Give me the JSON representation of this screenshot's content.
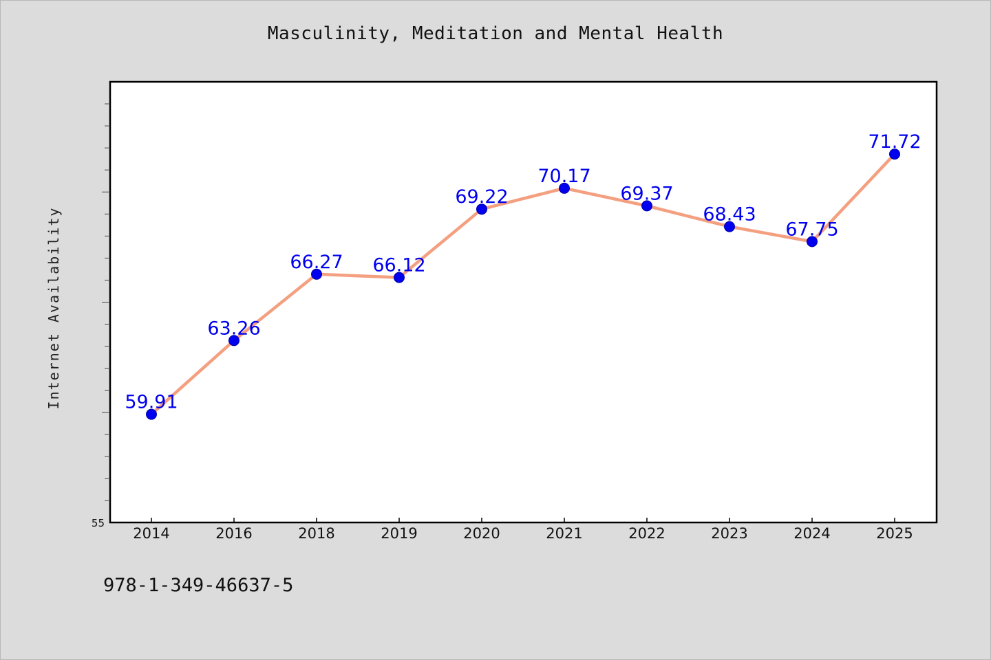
{
  "chart_data": {
    "type": "line",
    "title": "Masculinity, Meditation and Mental Health",
    "xlabel": "",
    "ylabel": "Internet Availability",
    "categories": [
      "2014",
      "2016",
      "2018",
      "2019",
      "2020",
      "2021",
      "2022",
      "2023",
      "2024",
      "2025"
    ],
    "series": [
      {
        "values": [
          59.91,
          63.26,
          66.27,
          66.12,
          69.22,
          70.17,
          69.37,
          68.43,
          67.75,
          71.72
        ]
      }
    ],
    "data_labels": [
      "59.91",
      "63.26",
      "66.27",
      "66.12",
      "69.22",
      "70.17",
      "69.37",
      "68.43",
      "67.75",
      "71.72"
    ],
    "y_tick_label": "55",
    "ylim": [
      55,
      75
    ],
    "grid": false,
    "legend": "none",
    "colors": {
      "line": "#f4a080",
      "marker": "#0000ee",
      "data_label": "#0000ee",
      "plot_background": "#ffffff",
      "page_background": "#dcdcdc"
    }
  },
  "footer": {
    "isbn": "978-1-349-46637-5"
  }
}
